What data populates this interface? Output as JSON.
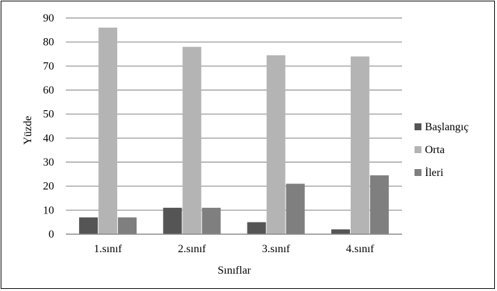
{
  "chart_data": {
    "type": "bar",
    "title": "",
    "xlabel": "Sınıflar",
    "ylabel": "Yüzde",
    "ylim": [
      0,
      90
    ],
    "yticks": [
      0,
      10,
      20,
      30,
      40,
      50,
      60,
      70,
      80,
      90
    ],
    "grid": true,
    "legend_position": "right",
    "categories": [
      "1.sınıf",
      "2.sınıf",
      "3.sınıf",
      "4.sınıf"
    ],
    "series": [
      {
        "name": "Başlangıç",
        "color": "#555555",
        "values": [
          7,
          11,
          5,
          2
        ]
      },
      {
        "name": "Orta",
        "color": "#b4b4b4",
        "values": [
          86,
          78,
          74.5,
          74
        ]
      },
      {
        "name": "İleri",
        "color": "#7f7f7f",
        "values": [
          7,
          11,
          21,
          24.5
        ]
      }
    ]
  }
}
